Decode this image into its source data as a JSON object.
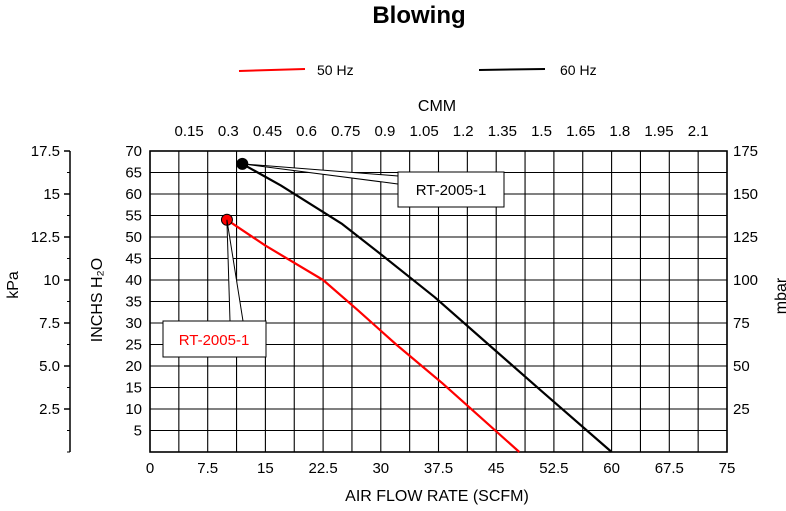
{
  "chart_data": {
    "type": "line",
    "title": "Blowing",
    "xlabel": "AIR FLOW RATE (SCFM)",
    "x_ticks": [
      "0",
      "7.5",
      "15",
      "22.5",
      "30",
      "37.5",
      "45",
      "52.5",
      "60",
      "67.5",
      "75"
    ],
    "xlim": [
      0,
      75
    ],
    "ylabel": "INCHS H₂O",
    "y_ticks": [
      "5",
      "10",
      "15",
      "20",
      "25",
      "30",
      "35",
      "40",
      "45",
      "50",
      "55",
      "60",
      "65",
      "70"
    ],
    "ylim": [
      0,
      70
    ],
    "top_axis_label": "CMM",
    "top_ticks": [
      "0.15",
      "0.3",
      "0.45",
      "0.6",
      "0.75",
      "0.9",
      "1.05",
      "1.2",
      "1.35",
      "1.5",
      "1.65",
      "1.8",
      "1.95",
      "2.1"
    ],
    "left_axis_label": "kPa",
    "left_ticks": [
      "17.5",
      "15",
      "12.5",
      "10",
      "7.5",
      "5.0",
      "2.5"
    ],
    "right_axis_label": "mbar",
    "right_ticks": [
      "175",
      "150",
      "125",
      "100",
      "75",
      "50",
      "25"
    ],
    "grid": true,
    "legend_position": "top",
    "series": [
      {
        "name": "50 Hz",
        "color": "#ff0000",
        "x": [
          10,
          15,
          22.5,
          27,
          32,
          38,
          43,
          48
        ],
        "y": [
          54,
          48,
          40,
          33,
          25,
          16,
          8,
          0
        ],
        "callout": "RT-2005-1"
      },
      {
        "name": "60 Hz",
        "color": "#000000",
        "x": [
          12,
          17,
          25,
          30,
          37,
          44,
          51,
          60
        ],
        "y": [
          67,
          62,
          53,
          46,
          36,
          25,
          14,
          0
        ],
        "callout": "RT-2005-1"
      }
    ]
  }
}
